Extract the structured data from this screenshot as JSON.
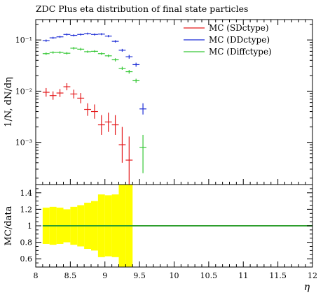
{
  "title": "ZDC Plus eta distribution of final state particles",
  "chart_data": [
    {
      "type": "scatter",
      "panel": "main",
      "title": "ZDC Plus eta distribution of final state particles",
      "xlabel": "",
      "ylabel": "1/N, dN/dη",
      "yscale": "log",
      "xlim": [
        8,
        12
      ],
      "ylim": [
        0.00015,
        0.25
      ],
      "ytick_labels": [
        "10⁻³",
        "10⁻²",
        "10⁻¹"
      ],
      "ytick_values": [
        0.001,
        0.01,
        0.1
      ],
      "grid": false,
      "legend_position": "top-right",
      "series": [
        {
          "name": "MC (SDctype)",
          "color": "#e41a1c",
          "points": [
            {
              "x": 8.15,
              "y": 0.0095,
              "ylo": 0.0078,
              "yhi": 0.0115
            },
            {
              "x": 8.25,
              "y": 0.0082,
              "ylo": 0.0068,
              "yhi": 0.0099
            },
            {
              "x": 8.35,
              "y": 0.0092,
              "ylo": 0.0077,
              "yhi": 0.011
            },
            {
              "x": 8.45,
              "y": 0.0122,
              "ylo": 0.0104,
              "yhi": 0.0143
            },
            {
              "x": 8.55,
              "y": 0.0088,
              "ylo": 0.0072,
              "yhi": 0.0107
            },
            {
              "x": 8.65,
              "y": 0.0073,
              "ylo": 0.0058,
              "yhi": 0.0092
            },
            {
              "x": 8.75,
              "y": 0.0044,
              "ylo": 0.0033,
              "yhi": 0.0058
            },
            {
              "x": 8.85,
              "y": 0.004,
              "ylo": 0.0029,
              "yhi": 0.0055
            },
            {
              "x": 8.95,
              "y": 0.0022,
              "ylo": 0.0014,
              "yhi": 0.0034
            },
            {
              "x": 9.05,
              "y": 0.0025,
              "ylo": 0.0016,
              "yhi": 0.0038
            },
            {
              "x": 9.15,
              "y": 0.0022,
              "ylo": 0.0014,
              "yhi": 0.0034
            },
            {
              "x": 9.25,
              "y": 0.0009,
              "ylo": 0.0004,
              "yhi": 0.002
            },
            {
              "x": 9.35,
              "y": 0.00045,
              "ylo": 0.00015,
              "yhi": 0.0013
            }
          ]
        },
        {
          "name": "MC (DDctype)",
          "color": "#1f2fd6",
          "points": [
            {
              "x": 8.15,
              "y": 0.097,
              "ylo": 0.092,
              "yhi": 0.102
            },
            {
              "x": 8.25,
              "y": 0.11,
              "ylo": 0.105,
              "yhi": 0.115
            },
            {
              "x": 8.35,
              "y": 0.115,
              "ylo": 0.11,
              "yhi": 0.12
            },
            {
              "x": 8.45,
              "y": 0.128,
              "ylo": 0.122,
              "yhi": 0.134
            },
            {
              "x": 8.55,
              "y": 0.123,
              "ylo": 0.117,
              "yhi": 0.129
            },
            {
              "x": 8.65,
              "y": 0.128,
              "ylo": 0.122,
              "yhi": 0.134
            },
            {
              "x": 8.75,
              "y": 0.133,
              "ylo": 0.127,
              "yhi": 0.139
            },
            {
              "x": 8.85,
              "y": 0.128,
              "ylo": 0.122,
              "yhi": 0.134
            },
            {
              "x": 8.95,
              "y": 0.13,
              "ylo": 0.124,
              "yhi": 0.136
            },
            {
              "x": 9.05,
              "y": 0.119,
              "ylo": 0.113,
              "yhi": 0.125
            },
            {
              "x": 9.15,
              "y": 0.094,
              "ylo": 0.089,
              "yhi": 0.099
            },
            {
              "x": 9.25,
              "y": 0.063,
              "ylo": 0.059,
              "yhi": 0.067
            },
            {
              "x": 9.35,
              "y": 0.047,
              "ylo": 0.043,
              "yhi": 0.051
            },
            {
              "x": 9.45,
              "y": 0.033,
              "ylo": 0.03,
              "yhi": 0.036
            },
            {
              "x": 9.55,
              "y": 0.0045,
              "ylo": 0.0035,
              "yhi": 0.0058
            }
          ]
        },
        {
          "name": "MC (Diffctype)",
          "color": "#37c837",
          "points": [
            {
              "x": 8.15,
              "y": 0.054,
              "ylo": 0.051,
              "yhi": 0.057
            },
            {
              "x": 8.25,
              "y": 0.057,
              "ylo": 0.054,
              "yhi": 0.06
            },
            {
              "x": 8.35,
              "y": 0.057,
              "ylo": 0.054,
              "yhi": 0.06
            },
            {
              "x": 8.45,
              "y": 0.055,
              "ylo": 0.052,
              "yhi": 0.058
            },
            {
              "x": 8.55,
              "y": 0.069,
              "ylo": 0.065,
              "yhi": 0.073
            },
            {
              "x": 8.65,
              "y": 0.066,
              "ylo": 0.062,
              "yhi": 0.07
            },
            {
              "x": 8.75,
              "y": 0.059,
              "ylo": 0.056,
              "yhi": 0.062
            },
            {
              "x": 8.85,
              "y": 0.06,
              "ylo": 0.057,
              "yhi": 0.063
            },
            {
              "x": 8.95,
              "y": 0.054,
              "ylo": 0.051,
              "yhi": 0.057
            },
            {
              "x": 9.05,
              "y": 0.049,
              "ylo": 0.046,
              "yhi": 0.052
            },
            {
              "x": 9.15,
              "y": 0.041,
              "ylo": 0.038,
              "yhi": 0.044
            },
            {
              "x": 9.25,
              "y": 0.028,
              "ylo": 0.026,
              "yhi": 0.03
            },
            {
              "x": 9.35,
              "y": 0.024,
              "ylo": 0.022,
              "yhi": 0.026
            },
            {
              "x": 9.45,
              "y": 0.016,
              "ylo": 0.0145,
              "yhi": 0.0175
            },
            {
              "x": 9.55,
              "y": 0.0008,
              "ylo": 0.00025,
              "yhi": 0.0014
            }
          ]
        }
      ]
    },
    {
      "type": "area",
      "panel": "ratio",
      "title": "",
      "xlabel": "η",
      "ylabel": "MC/data",
      "xlim": [
        8,
        12
      ],
      "ylim": [
        0.5,
        1.5
      ],
      "xtick_labels": [
        "8",
        "8.5",
        "9",
        "9.5",
        "10",
        "10.5",
        "11",
        "11.5",
        "12"
      ],
      "xtick_values": [
        8,
        8.5,
        9,
        9.5,
        10,
        10.5,
        11,
        11.5,
        12
      ],
      "ytick_labels": [
        "0.6",
        "0.8",
        "1",
        "1.2",
        "1.4"
      ],
      "ytick_values": [
        0.6,
        0.8,
        1.0,
        1.2,
        1.4
      ],
      "grid": false,
      "reference_line": {
        "y": 1.0,
        "color": "#2e9e2e"
      },
      "band_color": "#ffff00",
      "band": [
        {
          "x0": 8.1,
          "x1": 8.2,
          "lo": 0.78,
          "hi": 1.22
        },
        {
          "x0": 8.2,
          "x1": 8.3,
          "lo": 0.77,
          "hi": 1.23
        },
        {
          "x0": 8.3,
          "x1": 8.4,
          "lo": 0.78,
          "hi": 1.22
        },
        {
          "x0": 8.4,
          "x1": 8.5,
          "lo": 0.8,
          "hi": 1.2
        },
        {
          "x0": 8.5,
          "x1": 8.6,
          "lo": 0.77,
          "hi": 1.23
        },
        {
          "x0": 8.6,
          "x1": 8.7,
          "lo": 0.75,
          "hi": 1.25
        },
        {
          "x0": 8.7,
          "x1": 8.8,
          "lo": 0.72,
          "hi": 1.28
        },
        {
          "x0": 8.8,
          "x1": 8.9,
          "lo": 0.7,
          "hi": 1.3
        },
        {
          "x0": 8.9,
          "x1": 9.0,
          "lo": 0.62,
          "hi": 1.38
        },
        {
          "x0": 9.0,
          "x1": 9.1,
          "lo": 0.63,
          "hi": 1.37
        },
        {
          "x0": 9.1,
          "x1": 9.2,
          "lo": 0.62,
          "hi": 1.38
        },
        {
          "x0": 9.2,
          "x1": 9.3,
          "lo": 0.5,
          "hi": 1.5
        },
        {
          "x0": 9.3,
          "x1": 9.4,
          "lo": 0.5,
          "hi": 1.5
        }
      ]
    }
  ]
}
